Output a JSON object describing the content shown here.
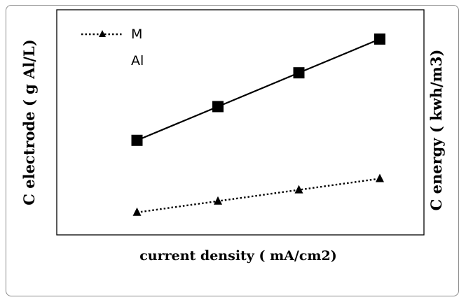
{
  "chart_data": {
    "type": "line",
    "title": "",
    "xlabel": "current density ( mA/cm2)",
    "ylabel_left": "C electrode ( g Al/L)",
    "ylabel_right": "C energy ( kwh/m3)",
    "x": [
      1,
      2,
      3,
      4
    ],
    "ylim": [
      0,
      10
    ],
    "grid": false,
    "legend_position": "top-left",
    "series": [
      {
        "name": "M",
        "style": "dotted",
        "marker": "triangle",
        "values": [
          1.0,
          1.5,
          2.0,
          2.5
        ]
      },
      {
        "name": "Al",
        "style": "solid",
        "marker": "square",
        "values": [
          4.2,
          5.7,
          7.2,
          8.7
        ]
      }
    ]
  },
  "colors": {
    "line": "#000000",
    "frame_border": "#8c8c8c"
  }
}
